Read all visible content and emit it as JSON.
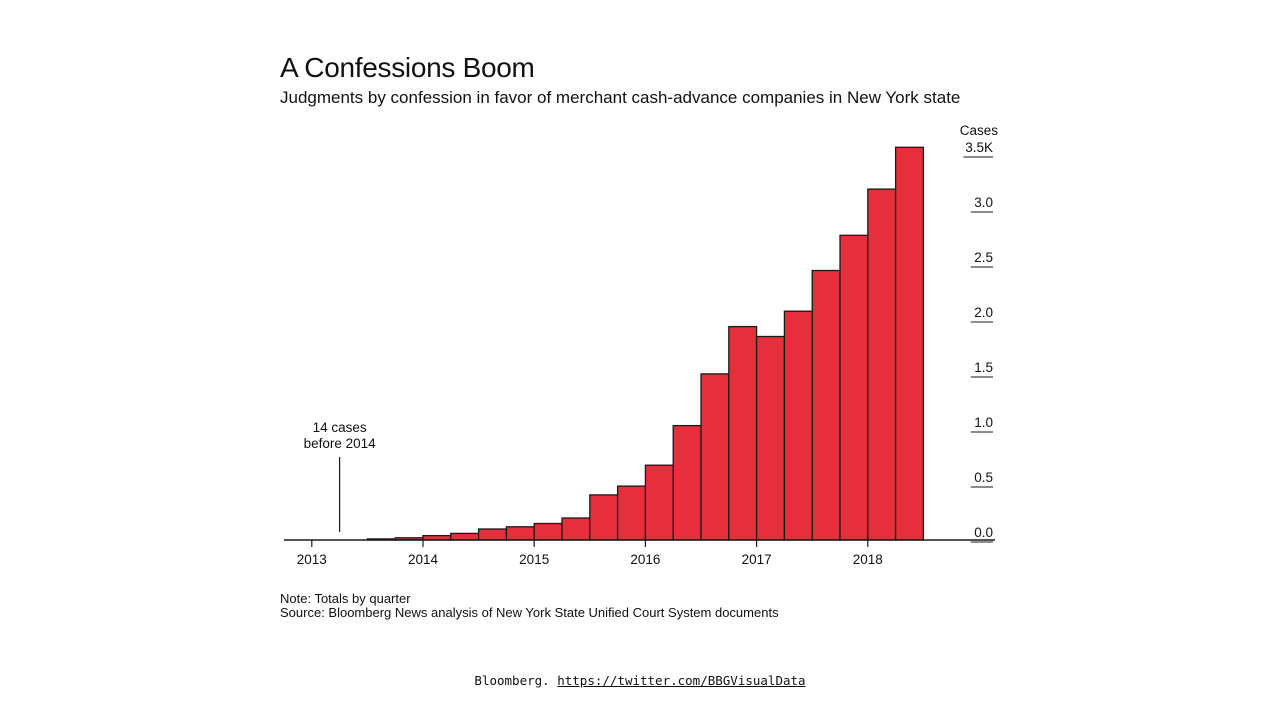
{
  "title": "A Confessions Boom",
  "subtitle": "Judgments by confession in favor of merchant cash-advance companies in New York state",
  "note": "Note: Totals by quarter",
  "source": "Source: Bloomberg News analysis of New York State Unified Court System documents",
  "credit": {
    "prefix": "Bloomberg.",
    "link": "https://twitter.com/BBGVisualData"
  },
  "colors": {
    "bar_fill": "#e5303c",
    "bar_stroke": "#1a1a1a",
    "text": "#111111"
  },
  "chart_data": {
    "type": "bar",
    "title": "A Confessions Boom",
    "subtitle": "Judgments by confession in favor of merchant cash-advance companies in New York state",
    "ylabel": "Cases",
    "y_unit_suffix": "K",
    "ylim": [
      0,
      3.6
    ],
    "y_ticks": [
      {
        "value": 3.5,
        "label": "3.5K"
      },
      {
        "value": 3.0,
        "label": "3.0"
      },
      {
        "value": 2.5,
        "label": "2.5"
      },
      {
        "value": 2.0,
        "label": "2.0"
      },
      {
        "value": 1.5,
        "label": "1.5"
      },
      {
        "value": 1.0,
        "label": "1.0"
      },
      {
        "value": 0.5,
        "label": "0.5"
      },
      {
        "value": 0.0,
        "label": "0.0"
      }
    ],
    "x_ticks": [
      "2013",
      "2014",
      "2015",
      "2016",
      "2017",
      "2018"
    ],
    "grid": false,
    "categories": [
      "2013 Q1",
      "2013 Q2",
      "2013 Q3",
      "2013 Q4",
      "2014 Q1",
      "2014 Q2",
      "2014 Q3",
      "2014 Q4",
      "2015 Q1",
      "2015 Q2",
      "2015 Q3",
      "2015 Q4",
      "2016 Q1",
      "2016 Q2",
      "2016 Q3",
      "2016 Q4",
      "2017 Q1",
      "2017 Q2",
      "2017 Q3",
      "2017 Q4",
      "2018 Q1",
      "2018 Q2",
      "2018 Q3",
      "2018 Q4"
    ],
    "values": [
      0,
      0,
      0,
      0.01,
      0.02,
      0.04,
      0.06,
      0.1,
      0.12,
      0.15,
      0.2,
      0.41,
      0.49,
      0.68,
      1.04,
      1.51,
      1.94,
      1.85,
      2.08,
      2.45,
      2.77,
      3.19,
      3.57,
      0
    ],
    "annotation": {
      "text": [
        "14 cases",
        "before 2014"
      ],
      "category": "2013 Q3"
    }
  }
}
